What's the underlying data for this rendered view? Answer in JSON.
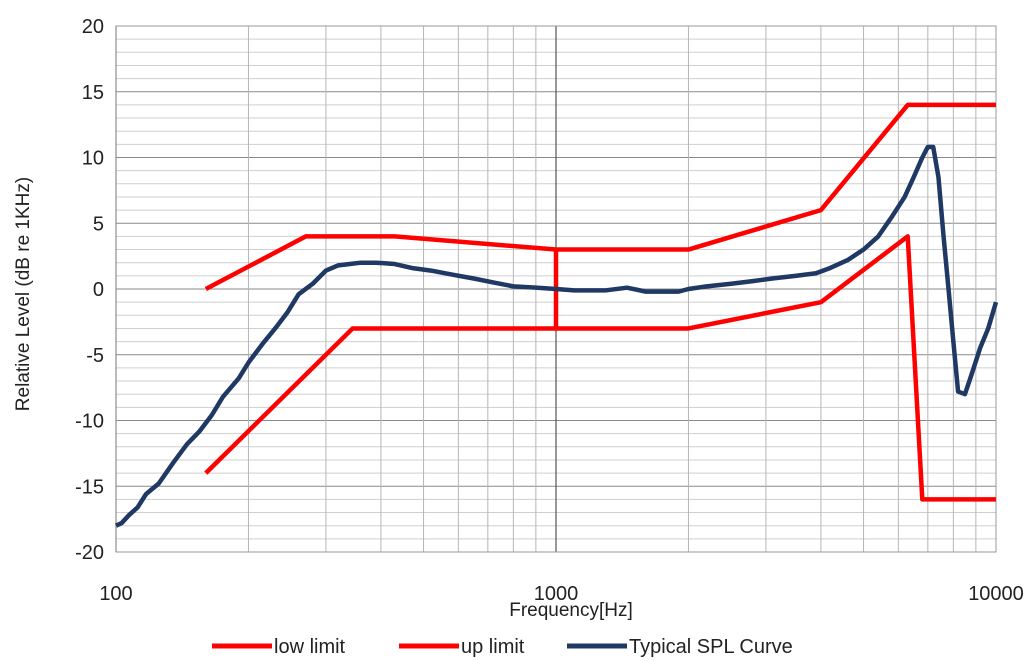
{
  "chart_data": {
    "type": "line",
    "title": "",
    "xlabel": "Frequency[Hz]",
    "ylabel": "Relative Level (dB re 1KHz)",
    "xscale": "log",
    "xlim": [
      100,
      10000
    ],
    "ylim": [
      -20,
      20
    ],
    "x_ticks": [
      100,
      1000,
      10000
    ],
    "x_tick_labels": [
      "100",
      "1000",
      "10000"
    ],
    "y_ticks": [
      -20,
      -15,
      -10,
      -5,
      0,
      5,
      10,
      15,
      20
    ],
    "y_tick_labels": [
      "-20",
      "-15",
      "-10",
      "-5",
      "0",
      "5",
      "10",
      "15",
      "20"
    ],
    "grid": true,
    "legend_position": "bottom",
    "series": [
      {
        "name": "low limit",
        "color": "#ff0000",
        "points": [
          [
            160,
            -14
          ],
          [
            345,
            -3
          ],
          [
            1000,
            -3
          ],
          [
            2000,
            -3
          ],
          [
            4000,
            -1
          ],
          [
            6300,
            4
          ],
          [
            6800,
            -16
          ],
          [
            10000,
            -16
          ]
        ]
      },
      {
        "name": "up limit",
        "color": "#ff0000",
        "points": [
          [
            160,
            0
          ],
          [
            270,
            4
          ],
          [
            430,
            4
          ],
          [
            1000,
            3
          ],
          [
            1000,
            -3
          ],
          [
            1000,
            3
          ],
          [
            2000,
            3
          ],
          [
            4000,
            6
          ],
          [
            6300,
            14
          ],
          [
            10000,
            14
          ]
        ]
      },
      {
        "name": "Typical SPL Curve",
        "color": "#1f3864",
        "points": [
          [
            100,
            -18
          ],
          [
            103,
            -17.8
          ],
          [
            107,
            -17.2
          ],
          [
            112,
            -16.6
          ],
          [
            117,
            -15.6
          ],
          [
            125,
            -14.8
          ],
          [
            135,
            -13.2
          ],
          [
            145,
            -11.8
          ],
          [
            155,
            -10.8
          ],
          [
            165,
            -9.6
          ],
          [
            175,
            -8.2
          ],
          [
            190,
            -6.8
          ],
          [
            200,
            -5.6
          ],
          [
            215,
            -4.2
          ],
          [
            230,
            -3.0
          ],
          [
            245,
            -1.8
          ],
          [
            260,
            -0.4
          ],
          [
            280,
            0.4
          ],
          [
            300,
            1.4
          ],
          [
            320,
            1.8
          ],
          [
            340,
            1.9
          ],
          [
            360,
            2.0
          ],
          [
            390,
            2.0
          ],
          [
            430,
            1.9
          ],
          [
            470,
            1.6
          ],
          [
            520,
            1.4
          ],
          [
            580,
            1.1
          ],
          [
            650,
            0.8
          ],
          [
            720,
            0.5
          ],
          [
            800,
            0.2
          ],
          [
            900,
            0.1
          ],
          [
            1000,
            0.0
          ],
          [
            1100,
            -0.1
          ],
          [
            1200,
            -0.1
          ],
          [
            1300,
            -0.1
          ],
          [
            1450,
            0.1
          ],
          [
            1600,
            -0.2
          ],
          [
            1750,
            -0.2
          ],
          [
            1900,
            -0.2
          ],
          [
            2000,
            0.0
          ],
          [
            2200,
            0.2
          ],
          [
            2500,
            0.4
          ],
          [
            2800,
            0.6
          ],
          [
            3100,
            0.8
          ],
          [
            3500,
            1.0
          ],
          [
            3900,
            1.2
          ],
          [
            4200,
            1.6
          ],
          [
            4600,
            2.2
          ],
          [
            5000,
            3.0
          ],
          [
            5400,
            4.0
          ],
          [
            5800,
            5.5
          ],
          [
            6200,
            7.0
          ],
          [
            6500,
            8.5
          ],
          [
            6800,
            10.0
          ],
          [
            7000,
            10.8
          ],
          [
            7200,
            10.8
          ],
          [
            7400,
            8.5
          ],
          [
            7600,
            4.0
          ],
          [
            7800,
            0.0
          ],
          [
            8000,
            -4.0
          ],
          [
            8200,
            -7.8
          ],
          [
            8500,
            -8.0
          ],
          [
            8800,
            -6.5
          ],
          [
            9200,
            -4.5
          ],
          [
            9600,
            -3.0
          ],
          [
            10000,
            -1.0
          ]
        ]
      }
    ]
  }
}
